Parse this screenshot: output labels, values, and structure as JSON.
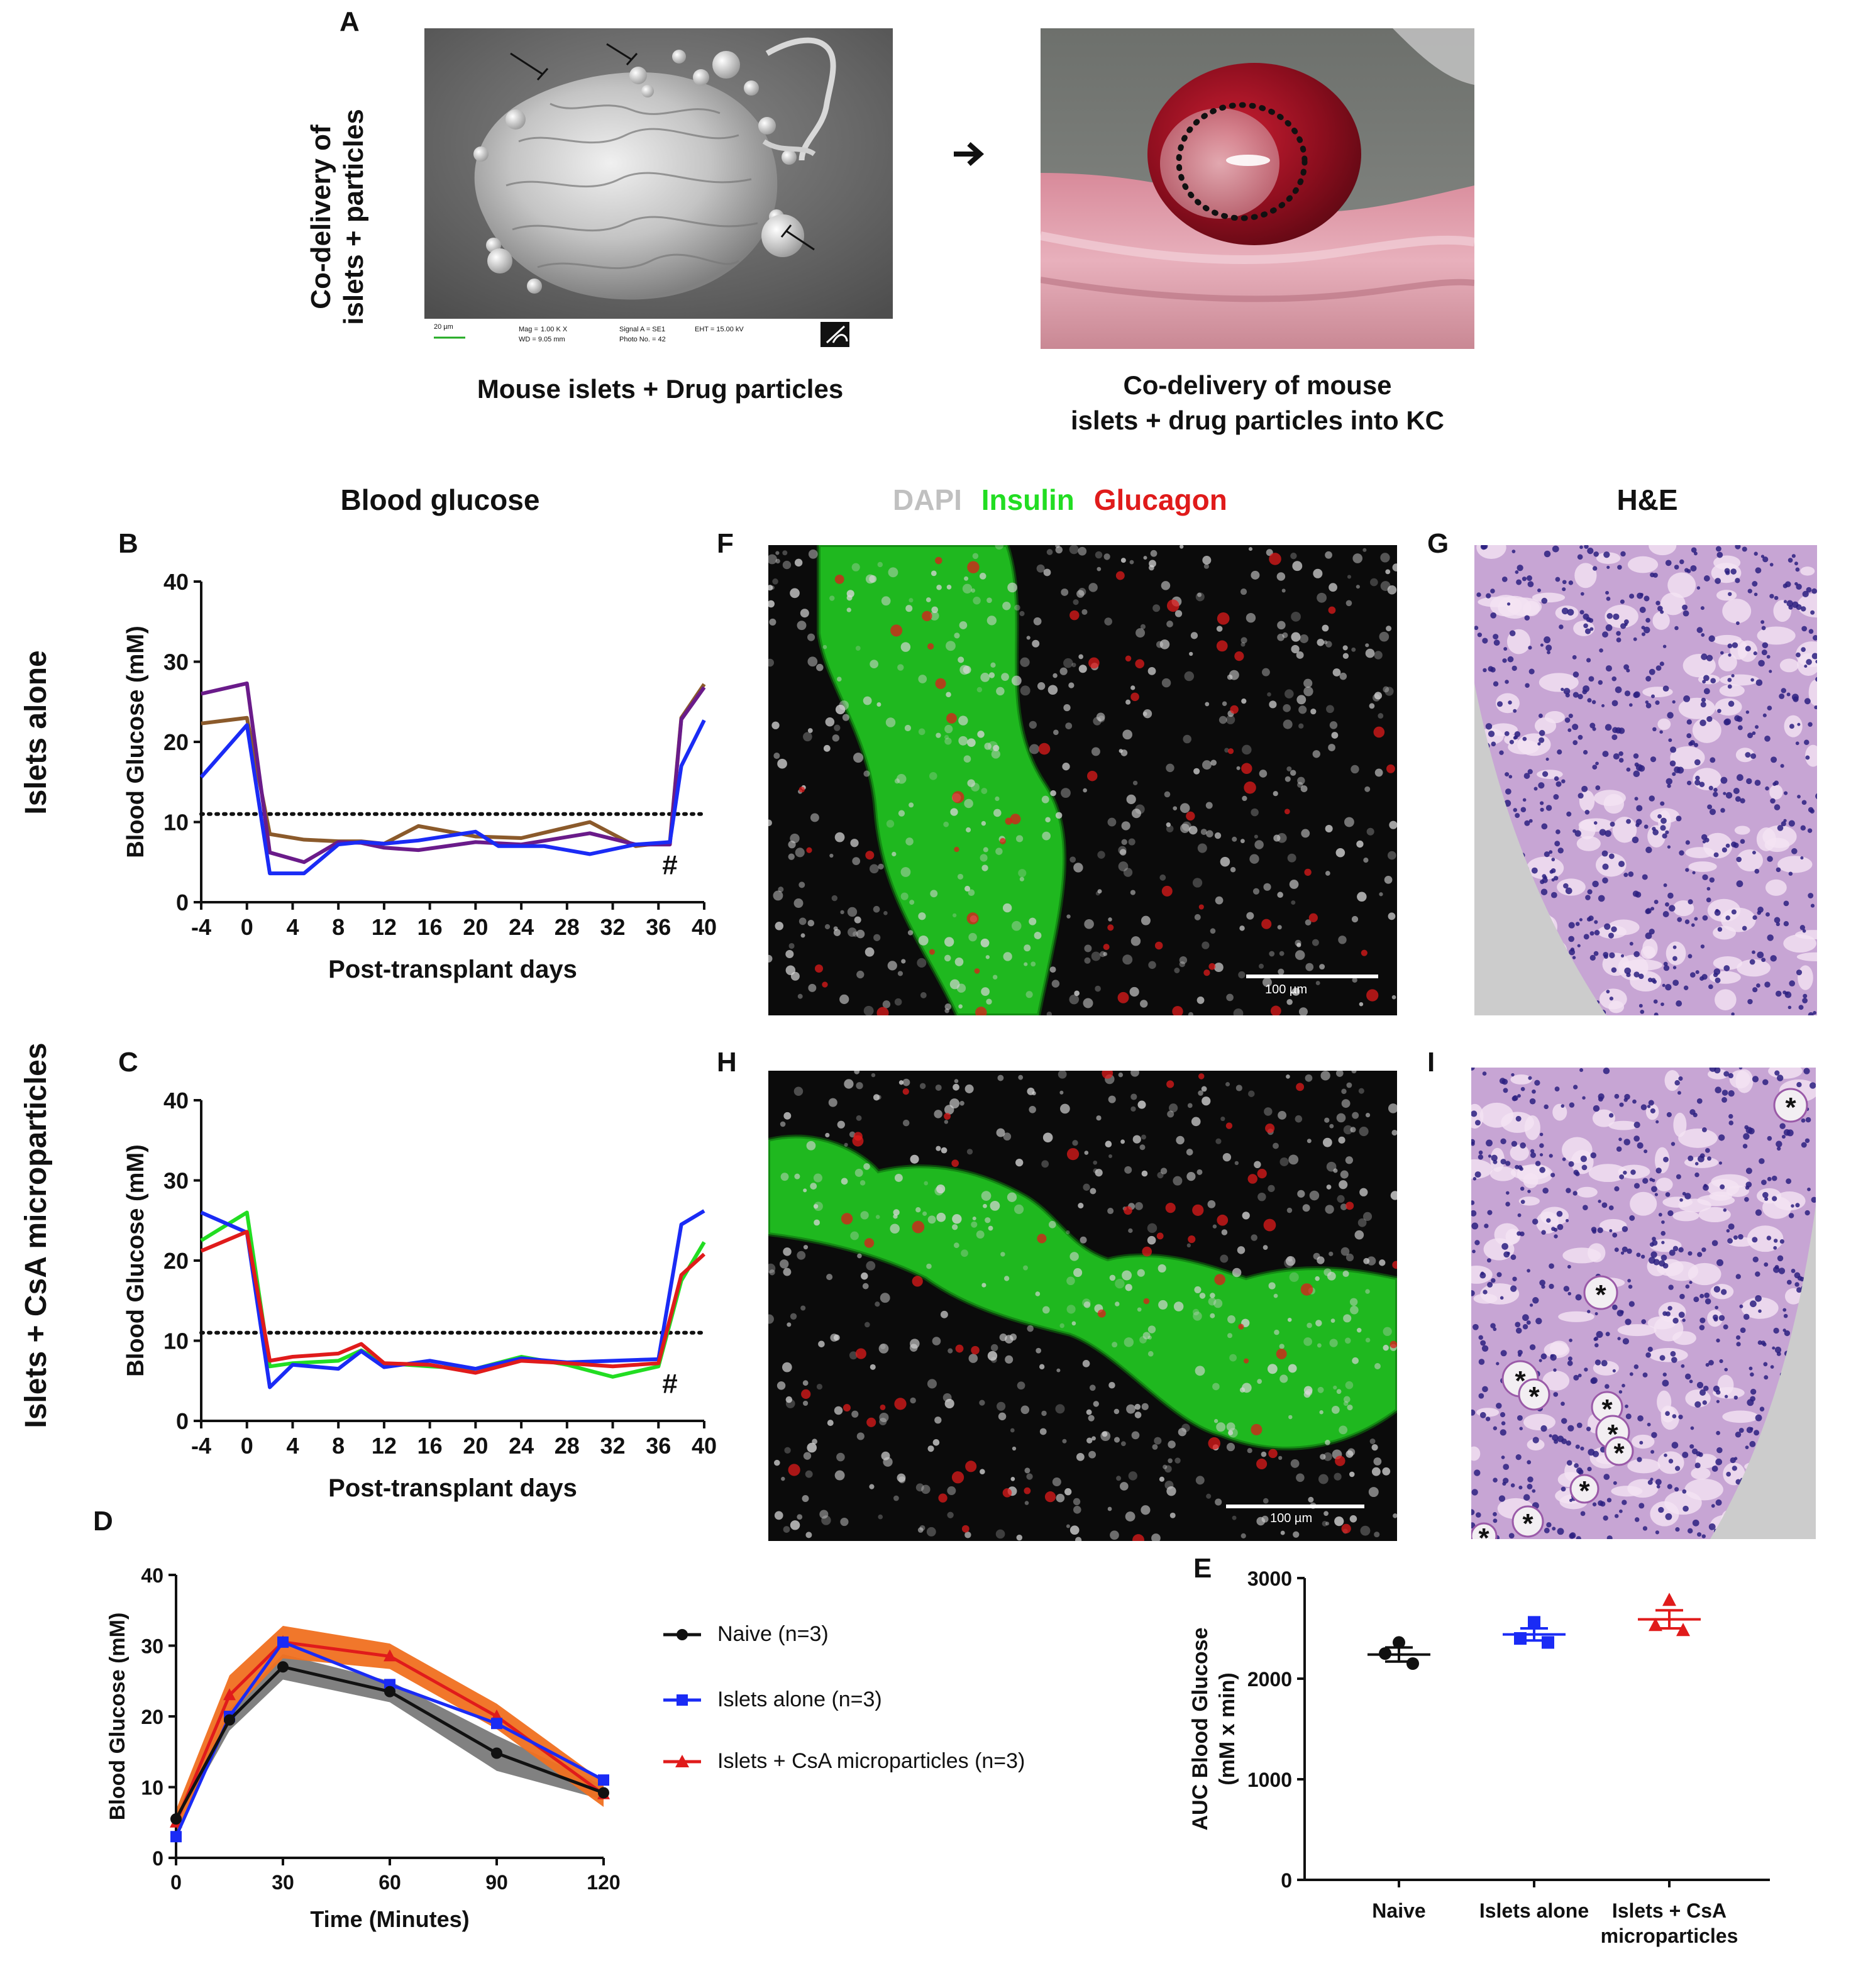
{
  "panel_letters": {
    "A": "A",
    "B": "B",
    "C": "C",
    "D": "D",
    "E": "E",
    "F": "F",
    "G": "G",
    "H": "H",
    "I": "I"
  },
  "panel_a": {
    "side_label_line1": "Co-delivery of",
    "side_label_line2": "islets + particles",
    "sem_caption": "Mouse islets + Drug particles",
    "kc_caption_line1": "Co-delivery of mouse",
    "kc_caption_line2": "islets + drug particles into KC",
    "sem_scale_label": "20 µm",
    "sem_meta": [
      "Mag =",
      "1.00 K X",
      "WD = 9.05 mm",
      "Signal A = SE1",
      "Photo No. = 42",
      "EHT = 15.00 kV"
    ]
  },
  "row_labels": {
    "islets_alone": "Islets alone",
    "islets_csa": "Islets + CsA microparticles"
  },
  "headers": {
    "blood_glucose": "Blood glucose",
    "dapi": "DAPI",
    "insulin": "Insulin",
    "glucagon": "Glucagon",
    "he": "H&E"
  },
  "micro": {
    "scale_bar_f": "100 µm",
    "scale_bar_h": "100 µm",
    "asterisk": "*"
  },
  "colors": {
    "brown": "#8B5A2B",
    "purple": "#6A1B8A",
    "blue": "#1A2BF5",
    "green": "#22DD22",
    "red": "#E01B1B",
    "black": "#111111",
    "orange": "#F07020",
    "gray": "#7A7A7A"
  },
  "chart_data": [
    {
      "id": "B",
      "type": "line",
      "xlabel": "Post-transplant days",
      "ylabel": "Blood Glucose (mM)",
      "xlim": [
        -4,
        40
      ],
      "ylim": [
        0,
        40
      ],
      "xticks": [
        -4,
        0,
        4,
        8,
        12,
        16,
        20,
        24,
        28,
        32,
        36,
        40
      ],
      "yticks": [
        0,
        10,
        20,
        30,
        40
      ],
      "threshold": 11,
      "annotation": "#",
      "annotation_x": 37,
      "annotation_y": 3.5,
      "series": [
        {
          "name": "brown",
          "color": "#8B5A2B",
          "x": [
            -4,
            0,
            2,
            5,
            8,
            10,
            12,
            15,
            20,
            24,
            30,
            34,
            37,
            38,
            40
          ],
          "y": [
            22.3,
            23,
            8.5,
            7.8,
            7.6,
            7.6,
            7.3,
            9.5,
            8.2,
            8,
            10,
            7,
            7.5,
            23,
            27.2
          ]
        },
        {
          "name": "purple",
          "color": "#6A1B8A",
          "x": [
            -4,
            0,
            2,
            5,
            8,
            10,
            12,
            15,
            20,
            24,
            30,
            34,
            37,
            38,
            40
          ],
          "y": [
            26,
            27.3,
            6.2,
            5,
            7.5,
            7.4,
            6.8,
            6.5,
            7.5,
            7.2,
            8.6,
            7.2,
            7.2,
            22.8,
            26.8
          ]
        },
        {
          "name": "blue",
          "color": "#1A2BF5",
          "x": [
            -4,
            0,
            2,
            5,
            8,
            10,
            12,
            15,
            20,
            22,
            26,
            30,
            34,
            37,
            38,
            40
          ],
          "y": [
            15.6,
            22.1,
            3.6,
            3.6,
            7.2,
            7.5,
            7.3,
            7.7,
            8.8,
            7,
            7,
            6,
            7.2,
            7.5,
            17,
            22.7
          ]
        }
      ]
    },
    {
      "id": "C",
      "type": "line",
      "xlabel": "Post-transplant days",
      "ylabel": "Blood Glucose (mM)",
      "xlim": [
        -4,
        40
      ],
      "ylim": [
        0,
        40
      ],
      "xticks": [
        -4,
        0,
        4,
        8,
        12,
        16,
        20,
        24,
        28,
        32,
        36,
        40
      ],
      "yticks": [
        0,
        10,
        20,
        30,
        40
      ],
      "threshold": 11,
      "annotation": "#",
      "annotation_x": 37,
      "annotation_y": 3.5,
      "series": [
        {
          "name": "green",
          "color": "#22DD22",
          "x": [
            -4,
            0,
            2,
            4,
            8,
            10,
            12,
            16,
            20,
            24,
            28,
            32,
            36,
            38,
            40
          ],
          "y": [
            22.5,
            26,
            6.8,
            7.2,
            7.5,
            8.8,
            7.2,
            6.8,
            6.5,
            8,
            7,
            5.5,
            6.8,
            17.5,
            22.3
          ]
        },
        {
          "name": "blue",
          "color": "#1A2BF5",
          "x": [
            -4,
            0,
            2,
            4,
            8,
            10,
            12,
            16,
            20,
            24,
            28,
            32,
            36,
            38,
            40
          ],
          "y": [
            26,
            23.5,
            4.2,
            7,
            6.5,
            8.7,
            6.7,
            7.5,
            6.5,
            7.8,
            7.3,
            7.5,
            7.7,
            24.5,
            26.2
          ]
        },
        {
          "name": "red",
          "color": "#E01B1B",
          "x": [
            -4,
            0,
            2,
            4,
            8,
            10,
            12,
            16,
            20,
            24,
            28,
            32,
            36,
            38,
            40
          ],
          "y": [
            21.2,
            23.6,
            7.5,
            8,
            8.4,
            9.6,
            7.2,
            7,
            6,
            7.5,
            7.2,
            6.8,
            7.2,
            18.2,
            20.8
          ]
        }
      ]
    },
    {
      "id": "D",
      "type": "line",
      "xlabel": "Time (Minutes)",
      "ylabel": "Blood Glucose (mM)",
      "xlim": [
        0,
        120
      ],
      "ylim": [
        0,
        40
      ],
      "xticks": [
        0,
        30,
        60,
        90,
        120
      ],
      "yticks": [
        0,
        10,
        20,
        30,
        40
      ],
      "series": [
        {
          "name": "Naive (n=3)",
          "color": "#111111",
          "band": "#7A7A7A",
          "marker": "circle",
          "x": [
            0,
            15,
            30,
            60,
            90,
            120
          ],
          "y": [
            5.5,
            19.5,
            27,
            23.5,
            14.8,
            9.2
          ],
          "err": [
            1,
            1.5,
            1.8,
            1.5,
            2.5,
            1
          ]
        },
        {
          "name": "Islets alone (n=3)",
          "color": "#1A2BF5",
          "band": null,
          "marker": "square",
          "x": [
            0,
            15,
            30,
            60,
            90,
            120
          ],
          "y": [
            3,
            20,
            30.5,
            24.5,
            19,
            11
          ],
          "err": [
            0,
            0,
            0,
            0,
            0,
            0
          ]
        },
        {
          "name": "Islets + CsA microparticles (n=3)",
          "color": "#E01B1B",
          "band": "#F07020",
          "marker": "triangle",
          "x": [
            0,
            15,
            30,
            60,
            90,
            120
          ],
          "y": [
            5,
            23,
            30.5,
            28.5,
            20,
            9
          ],
          "err": [
            1,
            2,
            1.5,
            1,
            1,
            1
          ]
        }
      ]
    },
    {
      "id": "E",
      "type": "scatter",
      "ylabel_line1": "AUC Blood Glucose",
      "ylabel_line2": "(mM x min)",
      "ylim": [
        0,
        3000
      ],
      "yticks": [
        0,
        1000,
        2000,
        3000
      ],
      "categories": [
        {
          "label_line1": "Naive",
          "label_line2": "",
          "color": "#111111",
          "marker": "circle",
          "points": [
            2360,
            2250,
            2150
          ],
          "mean": 2240,
          "sem": 70
        },
        {
          "label_line1": "Islets alone",
          "label_line2": "",
          "color": "#1A2BF5",
          "marker": "square",
          "points": [
            2560,
            2400,
            2360
          ],
          "mean": 2440,
          "sem": 60
        },
        {
          "label_line1": "Islets + CsA",
          "label_line2": "microparticles",
          "color": "#E01B1B",
          "marker": "triangle",
          "points": [
            2780,
            2530,
            2480
          ],
          "mean": 2590,
          "sem": 90
        }
      ]
    }
  ]
}
